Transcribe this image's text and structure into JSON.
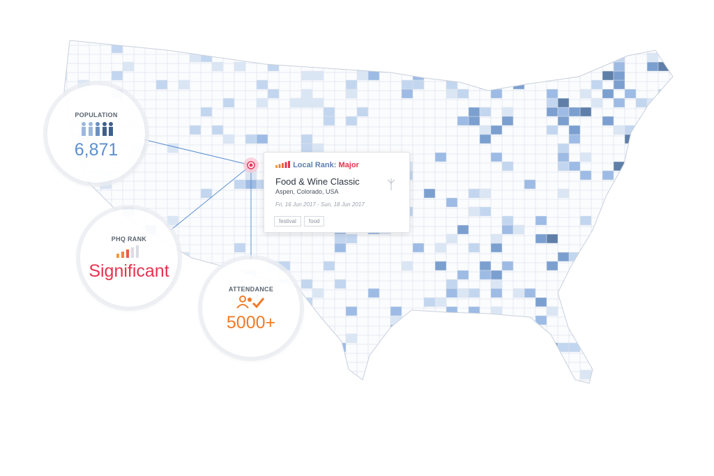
{
  "population": {
    "label": "POPULATION",
    "value": "6,871"
  },
  "rank": {
    "label": "PHQ RANK",
    "value": "Significant"
  },
  "attendance": {
    "label": "ATTENDANCE",
    "value": "5000+"
  },
  "event": {
    "local_rank_label": "Local Rank:",
    "local_rank": "Major",
    "title": "Food & Wine Classic",
    "location": "Aspen, Colorado, USA",
    "dates": "Fri, 16 Jun 2017 - Sun, 18 Jun 2017",
    "tags": [
      "festival",
      "food"
    ]
  }
}
